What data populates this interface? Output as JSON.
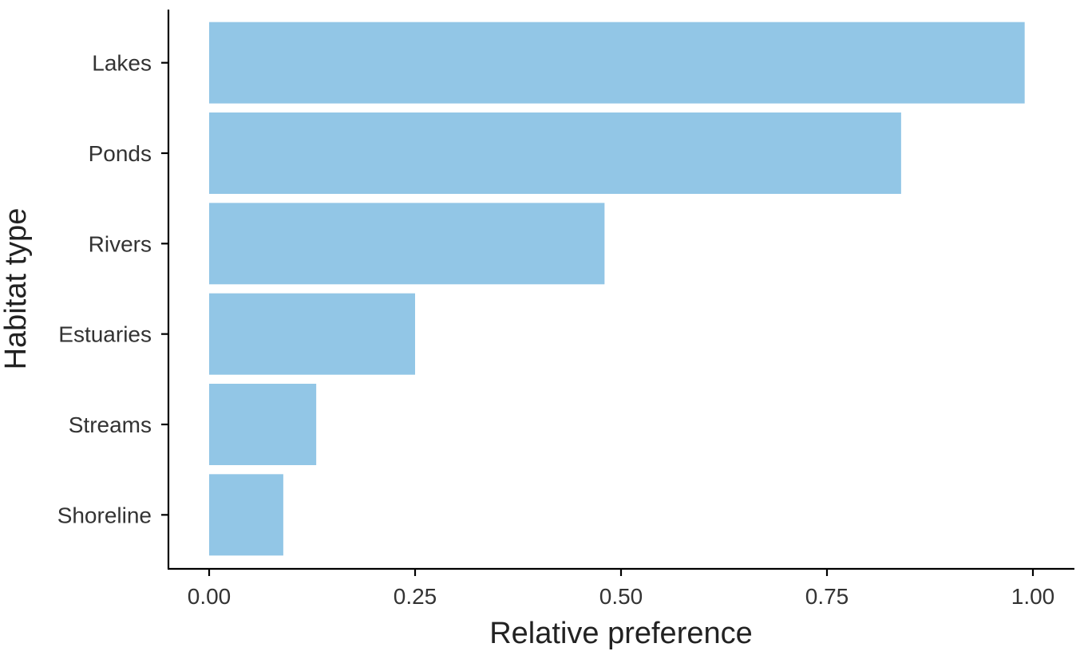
{
  "chart_data": {
    "type": "bar",
    "orientation": "horizontal",
    "categories": [
      "Lakes",
      "Ponds",
      "Rivers",
      "Estuaries",
      "Streams",
      "Shoreline"
    ],
    "values": [
      0.99,
      0.84,
      0.48,
      0.25,
      0.13,
      0.09
    ],
    "xlabel": "Relative preference",
    "ylabel": "Habitat type",
    "xlim": [
      0,
      1
    ],
    "x_ticks": [
      "0.00",
      "0.25",
      "0.50",
      "0.75",
      "1.00"
    ],
    "bar_color": "#92c6e6",
    "grid": false,
    "legend": "none"
  }
}
